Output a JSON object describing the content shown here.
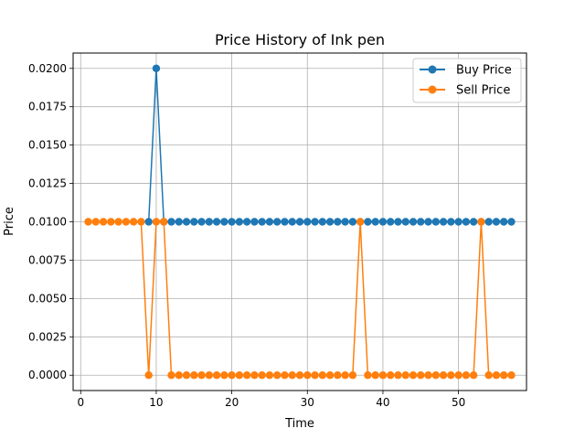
{
  "chart_data": {
    "type": "line",
    "title": "Price History of Ink pen",
    "xlabel": "Time",
    "ylabel": "Price",
    "xlim": [
      -1,
      59
    ],
    "ylim": [
      -0.001,
      0.021
    ],
    "xticks": [
      0,
      10,
      20,
      30,
      40,
      50
    ],
    "yticks": [
      0.0,
      0.0025,
      0.005,
      0.0075,
      0.01,
      0.0125,
      0.015,
      0.0175,
      0.02
    ],
    "ytick_labels": [
      "0.0000",
      "0.0025",
      "0.0050",
      "0.0075",
      "0.0100",
      "0.0125",
      "0.0150",
      "0.0175",
      "0.0200"
    ],
    "grid": true,
    "legend_position": "top-right",
    "series": [
      {
        "name": "Buy Price",
        "color": "#1f77b4",
        "x": [
          9,
          10,
          11,
          12,
          13,
          14,
          15,
          16,
          17,
          18,
          19,
          20,
          21,
          22,
          23,
          24,
          25,
          26,
          27,
          28,
          29,
          30,
          31,
          32,
          33,
          34,
          35,
          36,
          37,
          38,
          39,
          40,
          41,
          42,
          43,
          44,
          45,
          46,
          47,
          48,
          49,
          50,
          51,
          52,
          53,
          54,
          55,
          56,
          57
        ],
        "values": [
          0.01,
          0.02,
          0.01,
          0.01,
          0.01,
          0.01,
          0.01,
          0.01,
          0.01,
          0.01,
          0.01,
          0.01,
          0.01,
          0.01,
          0.01,
          0.01,
          0.01,
          0.01,
          0.01,
          0.01,
          0.01,
          0.01,
          0.01,
          0.01,
          0.01,
          0.01,
          0.01,
          0.01,
          0.01,
          0.01,
          0.01,
          0.01,
          0.01,
          0.01,
          0.01,
          0.01,
          0.01,
          0.01,
          0.01,
          0.01,
          0.01,
          0.01,
          0.01,
          0.01,
          0.01,
          0.01,
          0.01,
          0.01,
          0.01
        ]
      },
      {
        "name": "Sell Price",
        "color": "#ff7f0e",
        "x": [
          1,
          2,
          3,
          4,
          5,
          6,
          7,
          8,
          9,
          10,
          11,
          12,
          13,
          14,
          15,
          16,
          17,
          18,
          19,
          20,
          21,
          22,
          23,
          24,
          25,
          26,
          27,
          28,
          29,
          30,
          31,
          32,
          33,
          34,
          35,
          36,
          37,
          38,
          39,
          40,
          41,
          42,
          43,
          44,
          45,
          46,
          47,
          48,
          49,
          50,
          51,
          52,
          53,
          54,
          55,
          56,
          57
        ],
        "values": [
          0.01,
          0.01,
          0.01,
          0.01,
          0.01,
          0.01,
          0.01,
          0.01,
          0.0,
          0.01,
          0.01,
          0.0,
          0.0,
          0.0,
          0.0,
          0.0,
          0.0,
          0.0,
          0.0,
          0.0,
          0.0,
          0.0,
          0.0,
          0.0,
          0.0,
          0.0,
          0.0,
          0.0,
          0.0,
          0.0,
          0.0,
          0.0,
          0.0,
          0.0,
          0.0,
          0.0,
          0.01,
          0.0,
          0.0,
          0.0,
          0.0,
          0.0,
          0.0,
          0.0,
          0.0,
          0.0,
          0.0,
          0.0,
          0.0,
          0.0,
          0.0,
          0.0,
          0.01,
          0.0,
          0.0,
          0.0,
          0.0
        ]
      }
    ]
  }
}
